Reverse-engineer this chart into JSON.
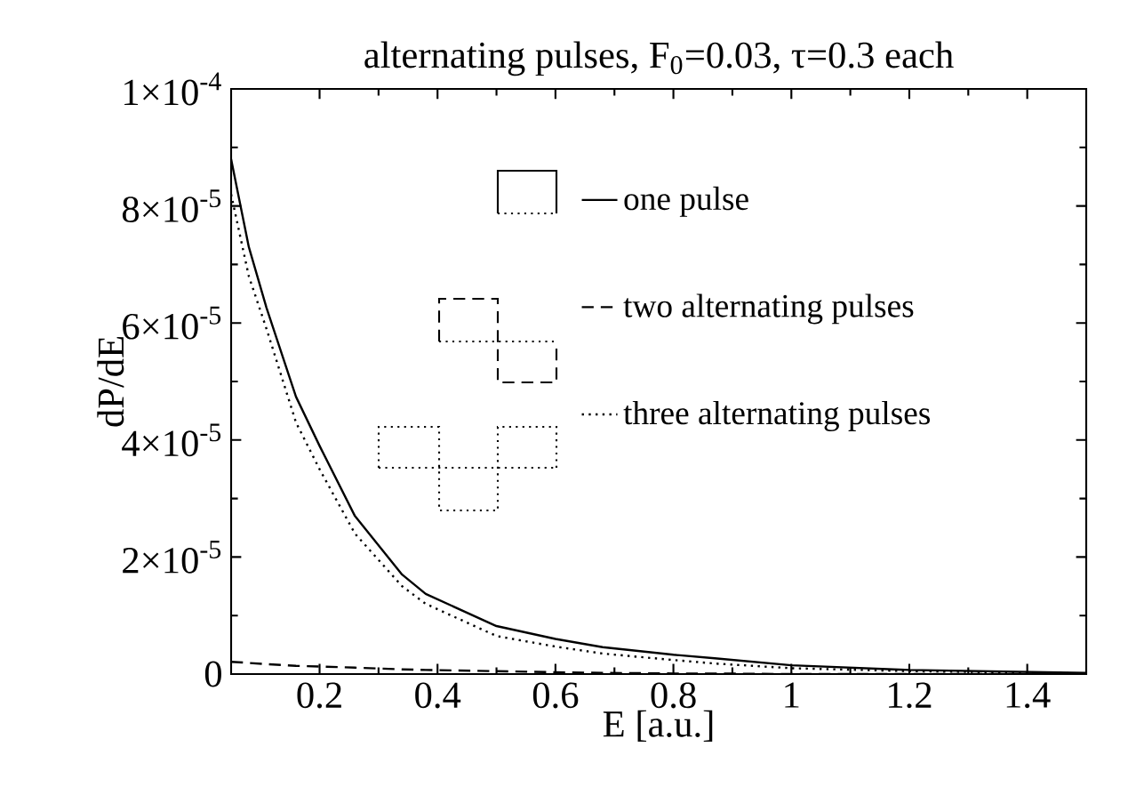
{
  "chart_data": {
    "type": "line",
    "title": "alternating pulses, F$_{0}$=0.03, τ=0.3 each",
    "xlabel": "E [a.u.]",
    "ylabel": "dP/dE",
    "x": [
      0.05,
      0.08,
      0.11,
      0.16,
      0.2,
      0.26,
      0.34,
      0.38,
      0.5,
      0.6,
      0.68,
      0.8,
      0.87,
      1.0,
      1.2,
      1.5
    ],
    "series": [
      {
        "name": "one pulse",
        "color": "#000000",
        "line_style": "solid",
        "values": [
          8.8e-05,
          7.3e-05,
          6.26e-05,
          4.74e-05,
          3.9e-05,
          2.7e-05,
          1.7e-05,
          1.37e-05,
          8.2e-06,
          6e-06,
          4.6e-06,
          3.3e-06,
          2.7e-06,
          1.5e-06,
          7e-07,
          2e-07
        ]
      },
      {
        "name": "two alternating pulses",
        "color": "#000000",
        "line_style": "dashed",
        "values": [
          2.1e-06,
          1.9e-06,
          1.7e-06,
          1.4e-06,
          1.3e-06,
          1.1e-06,
          8e-07,
          7e-07,
          5e-07,
          3e-07,
          2e-07,
          1e-07,
          1e-07,
          0,
          0,
          0
        ]
      },
      {
        "name": "three alternating pulses",
        "color": "#000000",
        "line_style": "dotted",
        "values": [
          8.2e-05,
          6.8e-05,
          5.9e-05,
          4.3e-05,
          3.5e-05,
          2.4e-05,
          1.5e-05,
          1.2e-05,
          6.5e-06,
          4.7e-06,
          3.5e-06,
          2.4e-06,
          1.8e-06,
          1e-06,
          5e-07,
          1e-07
        ]
      }
    ],
    "xlim": [
      0.05,
      1.5
    ],
    "ylim": [
      0,
      0.0001
    ],
    "xticks": [
      0.2,
      0.4,
      0.6,
      0.8,
      1,
      1.2,
      1.4
    ],
    "yticks": [
      0,
      {
        "value": 2e-05,
        "label": "2×10$^{-5}$"
      },
      {
        "value": 4e-05,
        "label": "4×10$^{-5}$"
      },
      {
        "value": 6e-05,
        "label": "6×10$^{-5}$"
      },
      {
        "value": 8e-05,
        "label": "8×10$^{-5}$"
      },
      {
        "value": 0.0001,
        "label": "1×10$^{-4}$"
      }
    ],
    "grid": false,
    "legend": "right",
    "marker": "none"
  }
}
